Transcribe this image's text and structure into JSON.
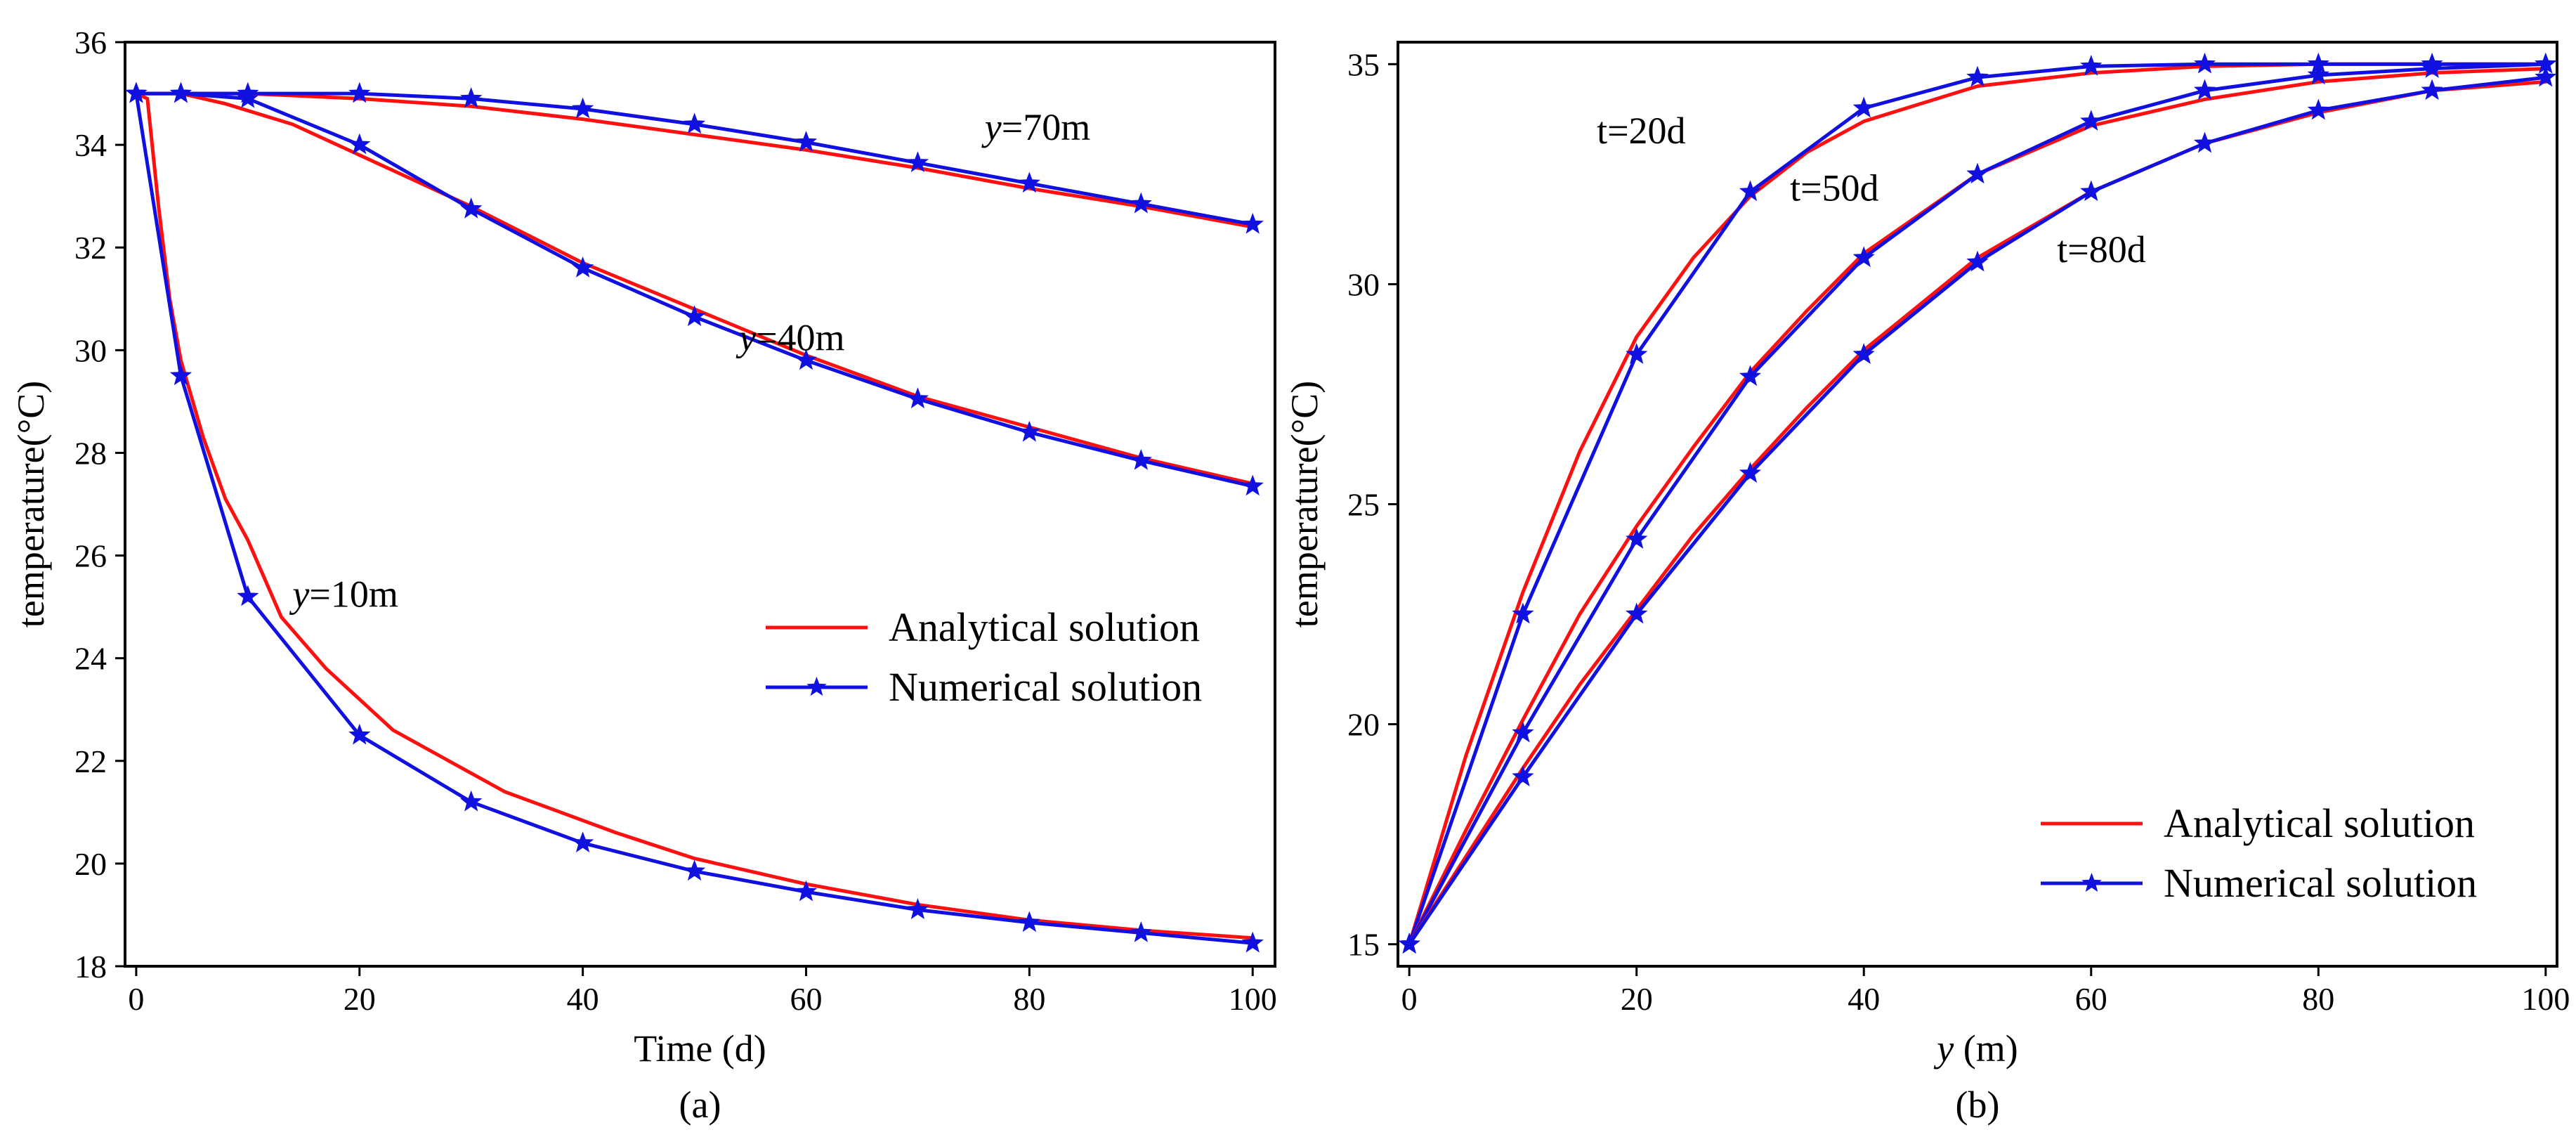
{
  "colors": {
    "analytical": "#ff1010",
    "numerical": "#1010e0",
    "axis": "#000000"
  },
  "legend_icon": "star-marker",
  "chart_data": [
    {
      "type": "line",
      "panel_label": "(a)",
      "xlabel": "Time (d)",
      "ylabel": "temperature(°C)",
      "xlim": [
        -1,
        102
      ],
      "ylim": [
        18,
        36
      ],
      "xticks": [
        0,
        20,
        40,
        60,
        80,
        100
      ],
      "yticks": [
        18,
        20,
        22,
        24,
        26,
        28,
        30,
        32,
        34,
        36
      ],
      "legend": {
        "position": "center-right",
        "entries": [
          "Analytical solution",
          "Numerical solution"
        ]
      },
      "annotations": [
        {
          "text_italic": "y",
          "text": "=70m",
          "x": 76,
          "y": 34.1
        },
        {
          "text_italic": "y",
          "text": "=40m",
          "x": 54,
          "y": 30.0
        },
        {
          "text_italic": "y",
          "text": "=10m",
          "x": 14,
          "y": 25.0
        }
      ],
      "series": [
        {
          "name": "Analytical solution",
          "label": "y=10m",
          "kind": "analytical",
          "x": [
            0,
            1,
            2,
            3,
            4,
            6,
            8,
            10,
            13,
            17,
            23,
            28,
            33,
            38,
            43,
            50,
            60,
            70,
            80,
            90,
            100
          ],
          "y": [
            35,
            34.9,
            32.8,
            31.0,
            29.8,
            28.3,
            27.1,
            26.3,
            24.8,
            23.8,
            22.6,
            22.0,
            21.4,
            21.0,
            20.6,
            20.1,
            19.6,
            19.2,
            18.9,
            18.7,
            18.55
          ]
        },
        {
          "name": "Numerical solution",
          "label": "y=10m",
          "kind": "numerical",
          "x": [
            0,
            4,
            10,
            20,
            30,
            40,
            50,
            60,
            70,
            80,
            90,
            100
          ],
          "y": [
            35,
            29.5,
            25.2,
            22.5,
            21.2,
            20.4,
            19.85,
            19.45,
            19.1,
            18.85,
            18.65,
            18.45
          ]
        },
        {
          "name": "Analytical solution",
          "label": "y=40m",
          "kind": "analytical",
          "x": [
            0,
            4,
            8,
            14,
            20,
            30,
            40,
            50,
            60,
            70,
            80,
            90,
            100
          ],
          "y": [
            35,
            35.0,
            34.8,
            34.4,
            33.8,
            32.8,
            31.7,
            30.8,
            29.9,
            29.1,
            28.5,
            27.9,
            27.4
          ]
        },
        {
          "name": "Numerical solution",
          "label": "y=40m",
          "kind": "numerical",
          "x": [
            0,
            4,
            10,
            20,
            30,
            40,
            50,
            60,
            70,
            80,
            90,
            100
          ],
          "y": [
            35,
            35.0,
            34.9,
            34.0,
            32.75,
            31.6,
            30.65,
            29.8,
            29.05,
            28.4,
            27.85,
            27.35
          ]
        },
        {
          "name": "Analytical solution",
          "label": "y=70m",
          "kind": "analytical",
          "x": [
            0,
            10,
            20,
            30,
            40,
            50,
            60,
            70,
            80,
            90,
            100
          ],
          "y": [
            35,
            35.0,
            34.9,
            34.75,
            34.5,
            34.2,
            33.9,
            33.55,
            33.15,
            32.8,
            32.4
          ]
        },
        {
          "name": "Numerical solution",
          "label": "y=70m",
          "kind": "numerical",
          "x": [
            0,
            4,
            10,
            20,
            30,
            40,
            50,
            60,
            70,
            80,
            90,
            100
          ],
          "y": [
            35,
            35.0,
            35.0,
            35.0,
            34.9,
            34.7,
            34.4,
            34.05,
            33.65,
            33.25,
            32.85,
            32.45
          ]
        }
      ]
    },
    {
      "type": "line",
      "panel_label": "(b)",
      "xlabel_italic": "y",
      "xlabel": " (m)",
      "ylabel": "temperature(°C)",
      "xlim": [
        -1,
        101
      ],
      "ylim": [
        14.5,
        35.5
      ],
      "xticks": [
        0,
        20,
        40,
        60,
        80,
        100
      ],
      "yticks": [
        15,
        20,
        25,
        30,
        35
      ],
      "legend": {
        "position": "bottom-right",
        "entries": [
          "Analytical solution",
          "Numerical solution"
        ]
      },
      "annotations": [
        {
          "text": "t=20d",
          "x": 16.5,
          "y": 33.2
        },
        {
          "text": "t=50d",
          "x": 33.5,
          "y": 31.9
        },
        {
          "text": "t=80d",
          "x": 57,
          "y": 30.5
        }
      ],
      "series": [
        {
          "name": "Analytical solution",
          "label": "t=20d",
          "kind": "analytical",
          "x": [
            0,
            5,
            10,
            15,
            20,
            25,
            30,
            35,
            40,
            50,
            60,
            70,
            80,
            90,
            100
          ],
          "y": [
            15,
            19.3,
            23.0,
            26.2,
            28.8,
            30.6,
            32.0,
            33.0,
            33.7,
            34.5,
            34.8,
            34.95,
            35.0,
            35.0,
            35.0
          ]
        },
        {
          "name": "Numerical solution",
          "label": "t=20d",
          "kind": "numerical",
          "x": [
            0,
            10,
            20,
            30,
            40,
            50,
            60,
            70,
            80,
            90,
            100
          ],
          "y": [
            15,
            22.5,
            28.4,
            32.1,
            34.0,
            34.7,
            34.95,
            35.0,
            35.0,
            35.0,
            35.0
          ]
        },
        {
          "name": "Analytical solution",
          "label": "t=50d",
          "kind": "analytical",
          "x": [
            0,
            5,
            10,
            15,
            20,
            25,
            30,
            35,
            40,
            50,
            60,
            70,
            80,
            90,
            100
          ],
          "y": [
            15,
            17.6,
            20.1,
            22.5,
            24.5,
            26.3,
            28.0,
            29.4,
            30.7,
            32.5,
            33.6,
            34.2,
            34.6,
            34.8,
            34.9
          ]
        },
        {
          "name": "Numerical solution",
          "label": "t=50d",
          "kind": "numerical",
          "x": [
            0,
            10,
            20,
            30,
            40,
            50,
            60,
            70,
            80,
            90,
            100
          ],
          "y": [
            15,
            19.8,
            24.2,
            27.9,
            30.6,
            32.5,
            33.7,
            34.4,
            34.75,
            34.9,
            35.0
          ]
        },
        {
          "name": "Analytical solution",
          "label": "t=80d",
          "kind": "analytical",
          "x": [
            0,
            5,
            10,
            15,
            20,
            25,
            30,
            35,
            40,
            50,
            60,
            70,
            80,
            90,
            100
          ],
          "y": [
            15,
            17.0,
            19.0,
            20.9,
            22.6,
            24.3,
            25.8,
            27.2,
            28.5,
            30.6,
            32.1,
            33.2,
            33.9,
            34.4,
            34.6
          ]
        },
        {
          "name": "Numerical solution",
          "label": "t=80d",
          "kind": "numerical",
          "x": [
            0,
            10,
            20,
            30,
            40,
            50,
            60,
            70,
            80,
            90,
            100
          ],
          "y": [
            15,
            18.8,
            22.5,
            25.7,
            28.4,
            30.5,
            32.1,
            33.2,
            33.95,
            34.4,
            34.7
          ]
        }
      ]
    }
  ]
}
